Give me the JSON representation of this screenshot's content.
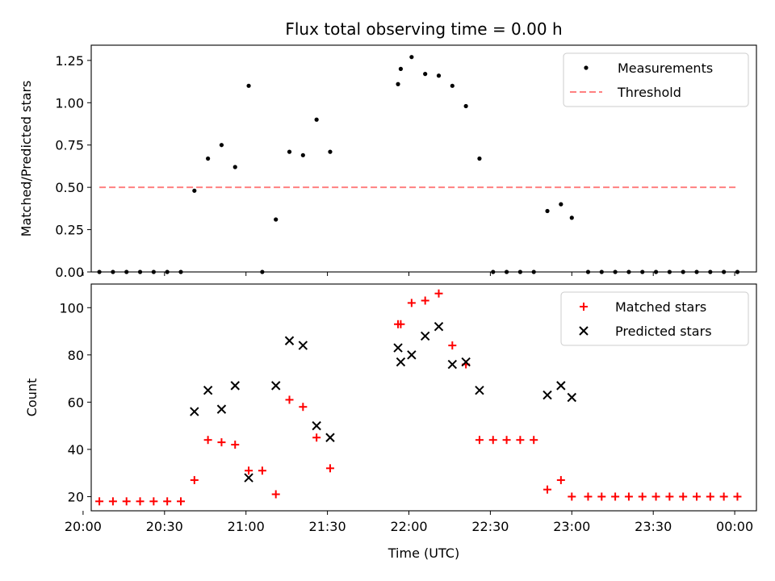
{
  "figure": {
    "title": "Flux total observing time = 0.00 h",
    "xlabel": "Time (UTC)"
  },
  "chart_data": [
    {
      "type": "scatter",
      "ylabel": "Matched/Predicted stars",
      "ylim": [
        0,
        1.34
      ],
      "yticks": [
        0.0,
        0.25,
        0.5,
        0.75,
        1.0,
        1.25
      ],
      "ytick_labels": [
        "0.00",
        "0.25",
        "0.50",
        "0.75",
        "1.00",
        "1.25"
      ],
      "xlim": [
        "20:03",
        "00:08"
      ],
      "xticks": [
        "20:00",
        "20:30",
        "21:00",
        "21:30",
        "22:00",
        "22:30",
        "23:00",
        "23:30",
        "00:00"
      ],
      "xtick_labels_shown": false,
      "legend": "top-right",
      "series": [
        {
          "name": "Measurements",
          "kind": "points",
          "color": "#000000",
          "x": [
            "20:06",
            "20:11",
            "20:16",
            "20:21",
            "20:26",
            "20:31",
            "20:36",
            "20:41",
            "20:46",
            "20:51",
            "20:56",
            "21:01",
            "21:06",
            "21:11",
            "21:16",
            "21:21",
            "21:26",
            "21:31",
            "21:56",
            "21:57",
            "22:01",
            "22:06",
            "22:11",
            "22:16",
            "22:21",
            "22:26",
            "22:31",
            "22:36",
            "22:41",
            "22:46",
            "22:51",
            "22:56",
            "23:00",
            "23:06",
            "23:11",
            "23:16",
            "23:21",
            "23:26",
            "23:31",
            "23:36",
            "23:41",
            "23:46",
            "23:51",
            "23:56",
            "00:01"
          ],
          "y": [
            0,
            0,
            0,
            0,
            0,
            0,
            0,
            0.48,
            0.67,
            0.75,
            0.62,
            1.1,
            0,
            0.31,
            0.71,
            0.69,
            0.9,
            0.71,
            1.11,
            1.2,
            1.27,
            1.17,
            1.16,
            1.1,
            0.98,
            0.67,
            0,
            0,
            0,
            0,
            0.36,
            0.4,
            0.32,
            0,
            0,
            0,
            0,
            0,
            0,
            0,
            0,
            0,
            0,
            0,
            0
          ]
        },
        {
          "name": "Threshold",
          "kind": "dashed-line",
          "color": "#ff8080",
          "x": [
            "20:06",
            "00:01"
          ],
          "y": [
            0.5,
            0.5
          ]
        }
      ]
    },
    {
      "type": "scatter",
      "ylabel": "Count",
      "ylim": [
        14,
        110
      ],
      "yticks": [
        20,
        40,
        60,
        80,
        100
      ],
      "ytick_labels": [
        "20",
        "40",
        "60",
        "80",
        "100"
      ],
      "xlim": [
        "20:03",
        "00:08"
      ],
      "xticks": [
        "20:00",
        "20:30",
        "21:00",
        "21:30",
        "22:00",
        "22:30",
        "23:00",
        "23:30",
        "00:00"
      ],
      "xtick_labels": [
        "20:00",
        "20:30",
        "21:00",
        "21:30",
        "22:00",
        "22:30",
        "23:00",
        "23:30",
        "00:00"
      ],
      "legend": "top-right",
      "series": [
        {
          "name": "Matched stars",
          "kind": "plus",
          "color": "#ff0000",
          "x": [
            "20:06",
            "20:11",
            "20:16",
            "20:21",
            "20:26",
            "20:31",
            "20:36",
            "20:41",
            "20:46",
            "20:51",
            "20:56",
            "21:01",
            "21:06",
            "21:11",
            "21:16",
            "21:21",
            "21:26",
            "21:31",
            "21:56",
            "21:57",
            "22:01",
            "22:06",
            "22:11",
            "22:16",
            "22:21",
            "22:26",
            "22:31",
            "22:36",
            "22:41",
            "22:46",
            "22:51",
            "22:56",
            "23:00",
            "23:06",
            "23:11",
            "23:16",
            "23:21",
            "23:26",
            "23:31",
            "23:36",
            "23:41",
            "23:46",
            "23:51",
            "23:56",
            "00:01"
          ],
          "y": [
            18,
            18,
            18,
            18,
            18,
            18,
            18,
            27,
            44,
            43,
            42,
            31,
            31,
            21,
            61,
            58,
            45,
            32,
            93,
            93,
            102,
            103,
            106,
            84,
            76,
            44,
            44,
            44,
            44,
            44,
            23,
            27,
            20,
            20,
            20,
            20,
            20,
            20,
            20,
            20,
            20,
            20,
            20,
            20,
            20
          ]
        },
        {
          "name": "Predicted stars",
          "kind": "cross",
          "color": "#000000",
          "x": [
            "20:41",
            "20:46",
            "20:51",
            "20:56",
            "21:01",
            "21:11",
            "21:16",
            "21:21",
            "21:26",
            "21:31",
            "21:56",
            "21:57",
            "22:01",
            "22:06",
            "22:11",
            "22:16",
            "22:21",
            "22:26",
            "22:51",
            "22:56",
            "23:00"
          ],
          "y": [
            56,
            65,
            57,
            67,
            28,
            67,
            86,
            84,
            50,
            45,
            83,
            77,
            80,
            88,
            92,
            76,
            77,
            65,
            63,
            67,
            62
          ]
        }
      ]
    }
  ]
}
